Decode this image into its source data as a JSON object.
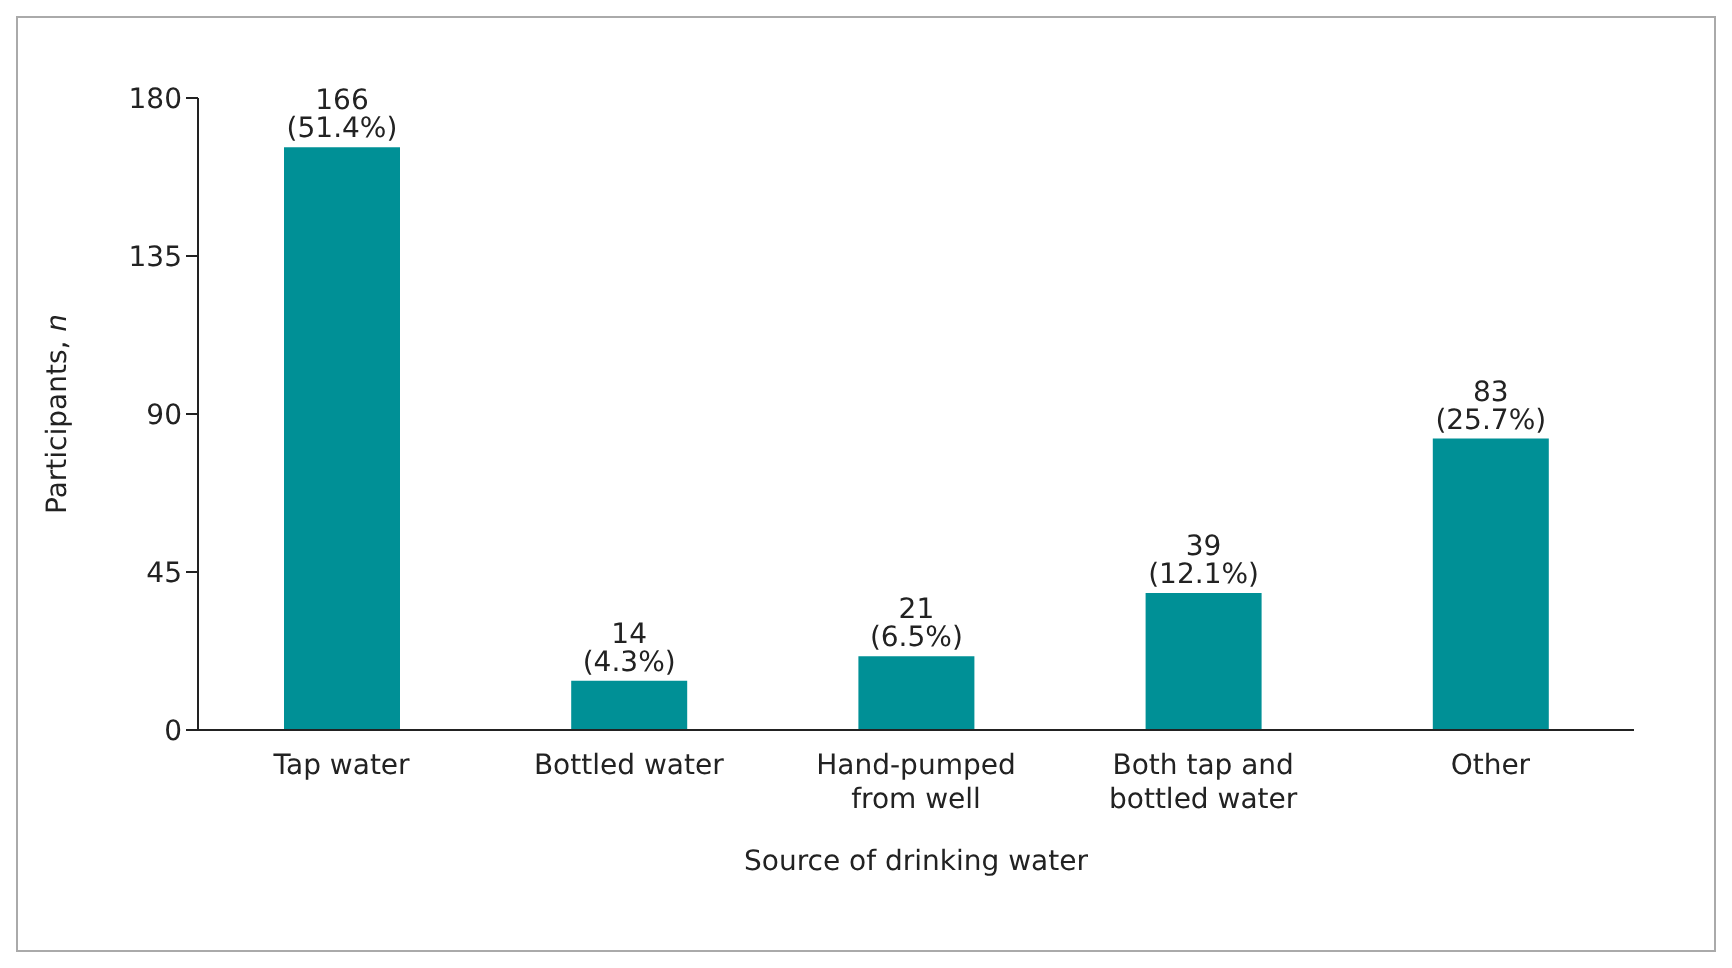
{
  "chart_data": {
    "type": "bar",
    "xlabel": "Source of drinking water",
    "ylabel": "Participants, n",
    "categories": [
      "Tap water",
      "Bottled water",
      "Hand-pumped from well",
      "Both tap and bottled water",
      "Other"
    ],
    "values": [
      166,
      14,
      21,
      39,
      83
    ],
    "value_labels": [
      "166 (51.4%)",
      "14 (4.3%)",
      "21 (6.5%)",
      "39 (12.1%)",
      "83 (25.7%)"
    ],
    "color": "#009096",
    "ylim": [
      0,
      180
    ],
    "yticks": [
      0,
      45,
      90,
      135,
      180
    ],
    "grid": false
  }
}
